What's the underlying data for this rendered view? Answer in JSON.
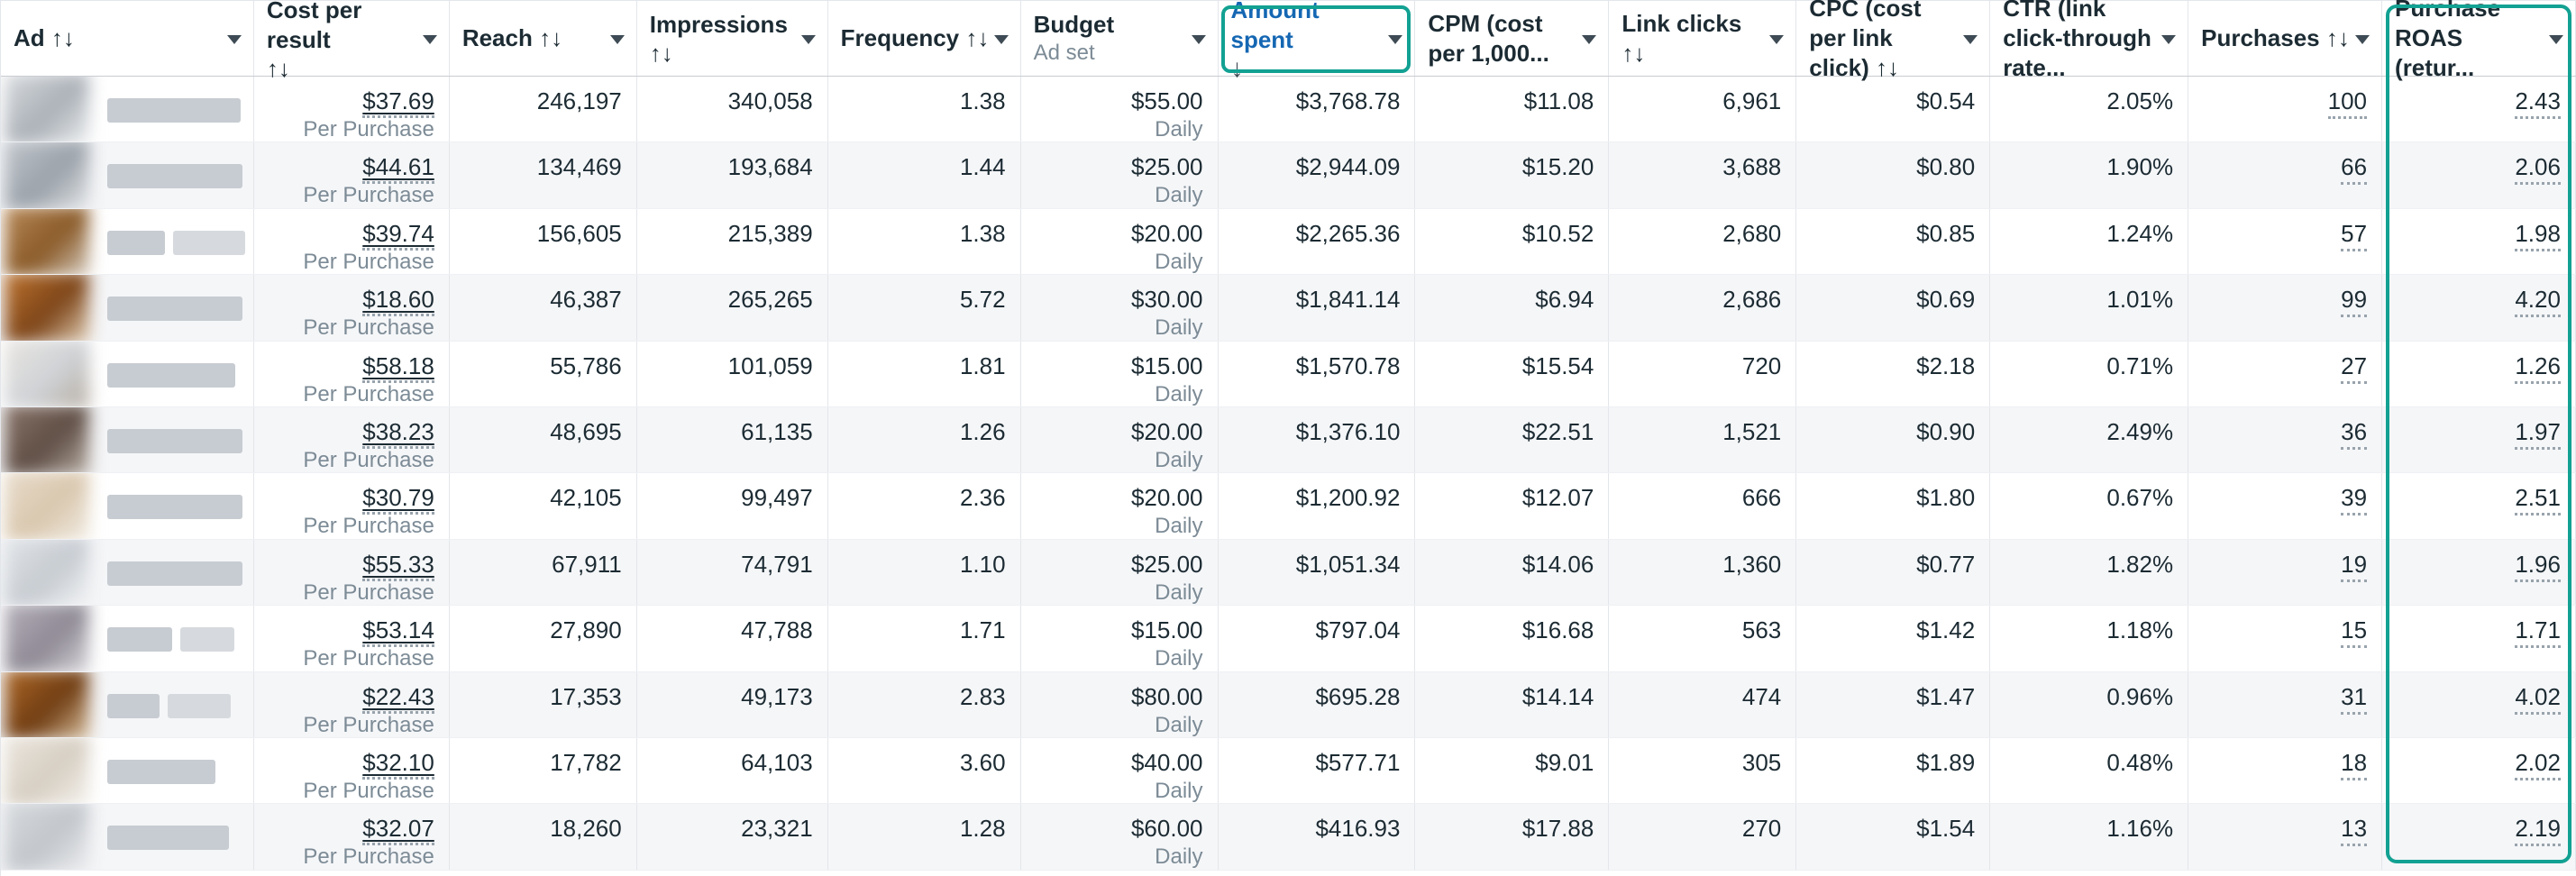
{
  "colors": {
    "accent_teal": "#12a192",
    "sorted_link_blue": "#1567b3",
    "text": "#1c2b33",
    "muted": "#7c8b96",
    "stripe": "#f5f6f8",
    "grid": "#e3e6ea",
    "header_border": "#c9ccd1",
    "redacted_bar": "#c7ccd2",
    "redacted_bar_light": "#d6dade",
    "dotted_underline": "#98a3ac"
  },
  "table": {
    "columns": [
      {
        "id": "ad",
        "label": "Ad ↑↓"
      },
      {
        "id": "cost_per_result",
        "label": "Cost per result",
        "subline": "↑↓",
        "subline_style": "arrows"
      },
      {
        "id": "reach",
        "label": "Reach ↑↓"
      },
      {
        "id": "impressions",
        "label": "Impressions",
        "subline": "↑↓",
        "subline_style": "arrows"
      },
      {
        "id": "frequency",
        "label": "Frequency ↑↓"
      },
      {
        "id": "budget",
        "label": "Budget",
        "subline": "Ad set",
        "subline_style": "muted"
      },
      {
        "id": "amount_spent",
        "label": "Amount spent",
        "subline": "↓",
        "subline_style": "arrows",
        "sorted": true
      },
      {
        "id": "cpm",
        "label": "CPM (cost per 1,000..."
      },
      {
        "id": "link_clicks",
        "label": "Link clicks ↑↓"
      },
      {
        "id": "cpc",
        "label": "CPC (cost per link click) ↑↓"
      },
      {
        "id": "ctr",
        "label": "CTR (link click-through rate..."
      },
      {
        "id": "purchases",
        "label": "Purchases ↑↓"
      },
      {
        "id": "purchase_roas",
        "label": "Purchase ROAS (retur...",
        "highlighted": true
      }
    ],
    "sub_labels": {
      "cost_per_result": "Per Purchase",
      "budget": "Daily"
    },
    "rows": [
      {
        "cost_per_result": "$37.69",
        "reach": "246,197",
        "impressions": "340,058",
        "frequency": "1.38",
        "budget": "$55.00",
        "amount_spent": "$3,768.78",
        "cpm": "$11.08",
        "link_clicks": "6,961",
        "cpc": "$0.54",
        "ctr": "2.05%",
        "purchases": "100",
        "purchase_roas": "2.43",
        "thumb": [
          "#d9dcdf",
          "#aab0b7",
          "#eef0f1"
        ],
        "name_bars": [
          148
        ]
      },
      {
        "cost_per_result": "$44.61",
        "reach": "134,469",
        "impressions": "193,684",
        "frequency": "1.44",
        "budget": "$25.00",
        "amount_spent": "$2,944.09",
        "cpm": "$15.20",
        "link_clicks": "3,688",
        "cpc": "$0.80",
        "ctr": "1.90%",
        "purchases": "66",
        "purchase_roas": "2.06",
        "thumb": [
          "#c2c7cd",
          "#9aa1a9",
          "#e6e8ea"
        ],
        "name_bars": [
          150
        ]
      },
      {
        "cost_per_result": "$39.74",
        "reach": "156,605",
        "impressions": "215,389",
        "frequency": "1.38",
        "budget": "$20.00",
        "amount_spent": "$2,265.36",
        "cpm": "$10.52",
        "link_clicks": "2,680",
        "cpc": "$0.85",
        "ctr": "1.24%",
        "purchases": "57",
        "purchase_roas": "1.98",
        "thumb": [
          "#b98b5a",
          "#8a5a28",
          "#d8cfc3"
        ],
        "name_bars": [
          64,
          80
        ]
      },
      {
        "cost_per_result": "$18.60",
        "reach": "46,387",
        "impressions": "265,265",
        "frequency": "5.72",
        "budget": "$30.00",
        "amount_spent": "$1,841.14",
        "cpm": "$6.94",
        "link_clicks": "2,686",
        "cpc": "$0.69",
        "ctr": "1.01%",
        "purchases": "99",
        "purchase_roas": "4.20",
        "thumb": [
          "#c0752f",
          "#7c4418",
          "#e5d2b8"
        ],
        "name_bars": [
          150
        ]
      },
      {
        "cost_per_result": "$58.18",
        "reach": "55,786",
        "impressions": "101,059",
        "frequency": "1.81",
        "budget": "$15.00",
        "amount_spent": "$1,570.78",
        "cpm": "$15.54",
        "link_clicks": "720",
        "cpc": "$2.18",
        "ctr": "0.71%",
        "purchases": "27",
        "purchase_roas": "1.26",
        "thumb": [
          "#e9e6e1",
          "#cfd2d6",
          "#b6aca0"
        ],
        "name_bars": [
          142
        ]
      },
      {
        "cost_per_result": "$38.23",
        "reach": "48,695",
        "impressions": "61,135",
        "frequency": "1.26",
        "budget": "$20.00",
        "amount_spent": "$1,376.10",
        "cpm": "$22.51",
        "link_clicks": "1,521",
        "cpc": "$0.90",
        "ctr": "2.49%",
        "purchases": "36",
        "purchase_roas": "1.97",
        "thumb": [
          "#8a756a",
          "#5f4e45",
          "#bcb2a8"
        ],
        "name_bars": [
          150
        ]
      },
      {
        "cost_per_result": "$30.79",
        "reach": "42,105",
        "impressions": "99,497",
        "frequency": "2.36",
        "budget": "$20.00",
        "amount_spent": "$1,200.92",
        "cpm": "$12.07",
        "link_clicks": "666",
        "cpc": "$1.80",
        "ctr": "0.67%",
        "purchases": "39",
        "purchase_roas": "2.51",
        "thumb": [
          "#e8dccb",
          "#d9c7ae",
          "#f2ede4"
        ],
        "name_bars": [
          150
        ]
      },
      {
        "cost_per_result": "$55.33",
        "reach": "67,911",
        "impressions": "74,791",
        "frequency": "1.10",
        "budget": "$25.00",
        "amount_spent": "$1,051.34",
        "cpm": "$14.06",
        "link_clicks": "1,360",
        "cpc": "$0.77",
        "ctr": "1.82%",
        "purchases": "19",
        "purchase_roas": "1.96",
        "thumb": [
          "#e2e5e8",
          "#c6cbd1",
          "#f4f5f6"
        ],
        "name_bars": [
          150
        ]
      },
      {
        "cost_per_result": "$53.14",
        "reach": "27,890",
        "impressions": "47,788",
        "frequency": "1.71",
        "budget": "$15.00",
        "amount_spent": "$797.04",
        "cpm": "$16.68",
        "link_clicks": "563",
        "cpc": "$1.42",
        "ctr": "1.18%",
        "purchases": "15",
        "purchase_roas": "1.71",
        "thumb": [
          "#b7b2bc",
          "#8e8994",
          "#dcdade"
        ],
        "name_bars": [
          72,
          60
        ]
      },
      {
        "cost_per_result": "$22.43",
        "reach": "17,353",
        "impressions": "49,173",
        "frequency": "2.83",
        "budget": "$80.00",
        "amount_spent": "$695.28",
        "cpm": "$14.14",
        "link_clicks": "474",
        "cpc": "$1.47",
        "ctr": "0.96%",
        "purchases": "31",
        "purchase_roas": "4.02",
        "thumb": [
          "#b06a28",
          "#6f3c12",
          "#dcc3a0"
        ],
        "name_bars": [
          58,
          70
        ]
      },
      {
        "cost_per_result": "$32.10",
        "reach": "17,782",
        "impressions": "64,103",
        "frequency": "3.60",
        "budget": "$40.00",
        "amount_spent": "$577.71",
        "cpm": "$9.01",
        "link_clicks": "305",
        "cpc": "$1.89",
        "ctr": "0.48%",
        "purchases": "18",
        "purchase_roas": "2.02",
        "thumb": [
          "#ece7df",
          "#d6cec2",
          "#f6f3ee"
        ],
        "name_bars": [
          120
        ]
      },
      {
        "cost_per_result": "$32.07",
        "reach": "18,260",
        "impressions": "23,321",
        "frequency": "1.28",
        "budget": "$60.00",
        "amount_spent": "$416.93",
        "cpm": "$17.88",
        "link_clicks": "270",
        "cpc": "$1.54",
        "ctr": "1.16%",
        "purchases": "13",
        "purchase_roas": "2.19",
        "thumb": [
          "#d7dadd",
          "#c2c6cb",
          "#edeef0"
        ],
        "name_bars": [
          135
        ]
      }
    ]
  }
}
